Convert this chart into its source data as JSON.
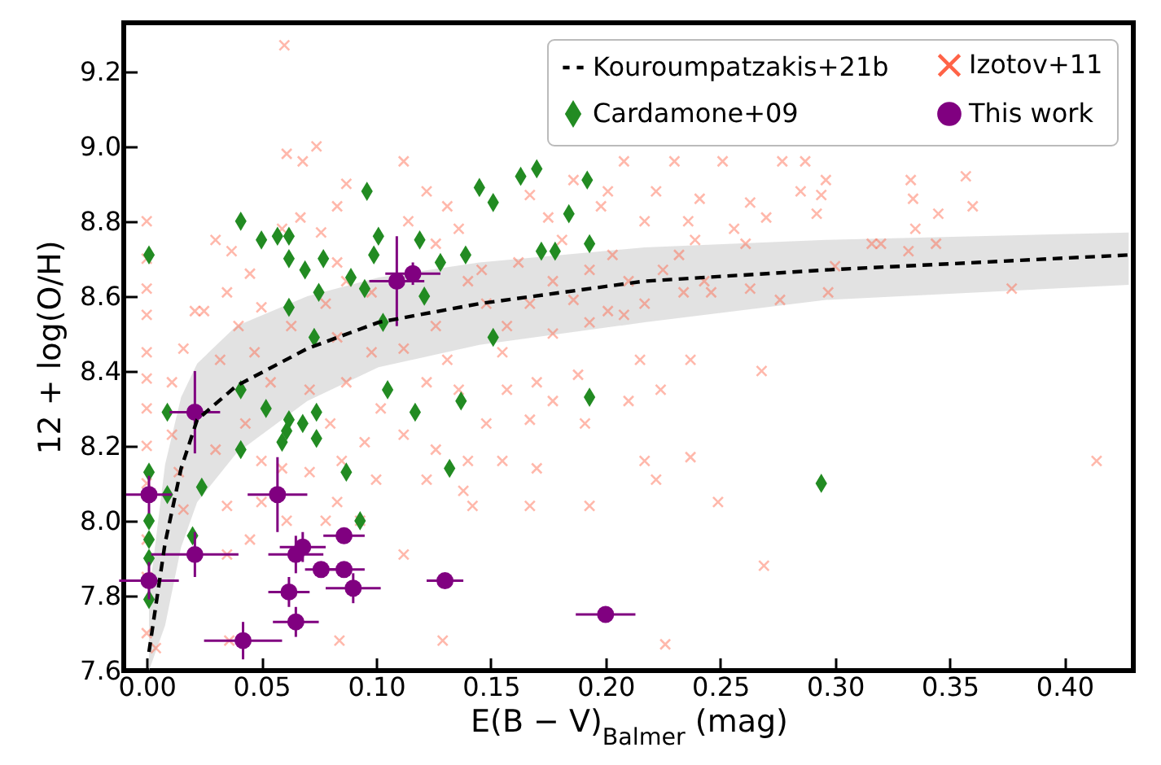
{
  "chart_data": {
    "type": "scatter",
    "xlabel": "E(B − V)$_{Balmer}$ (mag)",
    "ylabel": "12 + log(O/H)",
    "xlim": [
      -0.01,
      0.43
    ],
    "ylim": [
      7.6,
      9.33
    ],
    "xticks": [
      {
        "value": 0,
        "label": "0.00"
      },
      0.05,
      {
        "value": 0.1,
        "label": "0.10"
      },
      0.15,
      {
        "value": 0.2,
        "label": "0.20"
      },
      0.25,
      {
        "value": 0.3,
        "label": "0.30"
      },
      0.35,
      {
        "value": 0.4,
        "label": "0.40"
      }
    ],
    "yticks": [
      7.6,
      7.8,
      {
        "value": 8,
        "label": "8.0"
      },
      8.2,
      8.4,
      8.6,
      8.8,
      {
        "value": 9,
        "label": "9.0"
      },
      9.2
    ],
    "legend": "top right",
    "series": [
      {
        "name": "Kouroumpatzakis+21b",
        "type": "line",
        "line_style": "dashed",
        "color": "#000000",
        "x": [
          0.001,
          0.008,
          0.015,
          0.022,
          0.039,
          0.07,
          0.101,
          0.145,
          0.217,
          0.296,
          0.428
        ],
        "values": [
          7.65,
          7.94,
          8.14,
          8.27,
          8.36,
          8.46,
          8.53,
          8.58,
          8.64,
          8.67,
          8.71
        ],
        "lower": [
          7.6,
          7.72,
          7.93,
          8.05,
          8.18,
          8.32,
          8.41,
          8.47,
          8.53,
          8.59,
          8.63
        ],
        "upper": [
          7.8,
          8.15,
          8.33,
          8.42,
          8.52,
          8.6,
          8.65,
          8.69,
          8.73,
          8.75,
          8.77
        ]
      },
      {
        "name": "Izotov+11",
        "type": "scatter",
        "marker": "cross",
        "color": "#ff6347",
        "x": [
          0,
          0,
          0,
          0,
          0,
          0,
          0,
          0,
          0,
          0,
          0,
          0,
          0.021,
          0.025,
          0.011,
          0.016,
          0.011,
          0.014,
          0.016,
          0.03,
          0.037,
          0.035,
          0.045,
          0.05,
          0.04,
          0.032,
          0.047,
          0.054,
          0.043,
          0.03,
          0.05,
          0.035,
          0.05,
          0.061,
          0.045,
          0.035,
          0.078,
          0.059,
          0.067,
          0.076,
          0.083,
          0.087,
          0.083,
          0.087,
          0.098,
          0.078,
          0.063,
          0.083,
          0.098,
          0.087,
          0.071,
          0.102,
          0.08,
          0.095,
          0.085,
          0.1,
          0.083,
          0.093,
          0.071,
          0.059,
          0.112,
          0.122,
          0.131,
          0.114,
          0.126,
          0.136,
          0.14,
          0.126,
          0.112,
          0.131,
          0.122,
          0.136,
          0.112,
          0.126,
          0.122,
          0.138,
          0.112,
          0.129,
          0.084,
          0.004,
          0.036,
          0.226,
          0.06,
          0.061,
          0.068,
          0.074,
          0.208,
          0.23,
          0.251,
          0.277,
          0.287,
          0.186,
          0.201,
          0.222,
          0.241,
          0.263,
          0.285,
          0.167,
          0.175,
          0.198,
          0.217,
          0.236,
          0.256,
          0.27,
          0.181,
          0.203,
          0.232,
          0.239,
          0.261,
          0.146,
          0.162,
          0.177,
          0.193,
          0.21,
          0.225,
          0.243,
          0.148,
          0.167,
          0.186,
          0.201,
          0.217,
          0.234,
          0.246,
          0.263,
          0.276,
          0.157,
          0.177,
          0.193,
          0.208,
          0.155,
          0.17,
          0.188,
          0.215,
          0.237,
          0.268,
          0.157,
          0.177,
          0.21,
          0.224,
          0.148,
          0.167,
          0.191,
          0.14,
          0.155,
          0.17,
          0.217,
          0.237,
          0.142,
          0.167,
          0.193,
          0.222,
          0.249,
          0.269,
          0.296,
          0.294,
          0.292,
          0.333,
          0.334,
          0.357,
          0.36,
          0.345,
          0.335,
          0.316,
          0.32,
          0.332,
          0.344,
          0.3,
          0.297,
          0.377,
          0.414
        ],
        "values": [
          8.8,
          8.7,
          8.62,
          8.55,
          8.45,
          8.38,
          8.3,
          8.2,
          8.1,
          7.95,
          7.85,
          7.7,
          8.56,
          8.56,
          8.37,
          8.46,
          8.23,
          8.13,
          8.03,
          8.75,
          8.72,
          8.61,
          8.66,
          8.57,
          8.52,
          8.43,
          8.45,
          8.37,
          8.26,
          8.19,
          8.16,
          8.04,
          8.05,
          8.0,
          7.95,
          7.91,
          8.0,
          8.78,
          8.81,
          8.77,
          8.84,
          8.9,
          8.69,
          8.64,
          8.61,
          8.58,
          8.52,
          8.49,
          8.45,
          8.37,
          8.35,
          8.3,
          8.26,
          8.21,
          8.16,
          8.11,
          8.05,
          8.0,
          8.13,
          8.14,
          8.96,
          8.88,
          8.84,
          8.8,
          8.74,
          8.78,
          8.64,
          8.52,
          8.46,
          8.43,
          8.37,
          8.35,
          8.23,
          8.19,
          8.11,
          8.08,
          7.91,
          7.68,
          7.68,
          7.66,
          7.68,
          7.67,
          9.27,
          8.98,
          8.96,
          9.0,
          8.96,
          8.96,
          8.96,
          8.96,
          8.96,
          8.91,
          8.88,
          8.88,
          8.86,
          8.85,
          8.88,
          8.87,
          8.81,
          8.84,
          8.8,
          8.8,
          8.78,
          8.81,
          8.75,
          8.71,
          8.71,
          8.75,
          8.74,
          8.67,
          8.69,
          8.64,
          8.67,
          8.64,
          8.67,
          8.64,
          8.58,
          8.58,
          8.59,
          8.56,
          8.58,
          8.61,
          8.61,
          8.62,
          8.59,
          8.52,
          8.5,
          8.53,
          8.55,
          8.45,
          8.37,
          8.39,
          8.43,
          8.43,
          8.4,
          8.35,
          8.32,
          8.32,
          8.35,
          8.26,
          8.27,
          8.26,
          8.16,
          8.16,
          8.14,
          8.16,
          8.17,
          8.04,
          8.04,
          8.04,
          8.11,
          8.05,
          7.88,
          8.91,
          8.87,
          8.82,
          8.91,
          8.86,
          8.92,
          8.84,
          8.82,
          8.78,
          8.74,
          8.74,
          8.72,
          8.74,
          8.68,
          8.61,
          8.62,
          8.16
        ]
      },
      {
        "name": "Cardamone+09",
        "type": "scatter",
        "marker": "diamond",
        "color": "#228b22",
        "x": [
          0.001,
          0.001,
          0.001,
          0.001,
          0.001,
          0.001,
          0.009,
          0.009,
          0.02,
          0.024,
          0.041,
          0.041,
          0.041,
          0.05,
          0.052,
          0.057,
          0.062,
          0.062,
          0.062,
          0.059,
          0.061,
          0.062,
          0.068,
          0.069,
          0.073,
          0.075,
          0.074,
          0.074,
          0.077,
          0.087,
          0.089,
          0.093,
          0.095,
          0.096,
          0.099,
          0.101,
          0.103,
          0.105,
          0.117,
          0.119,
          0.121,
          0.128,
          0.132,
          0.137,
          0.139,
          0.145,
          0.151,
          0.151,
          0.163,
          0.17,
          0.172,
          0.178,
          0.184,
          0.192,
          0.193,
          0.193,
          0.294
        ],
        "values": [
          8.71,
          8.13,
          8.0,
          7.95,
          7.9,
          7.79,
          8.29,
          8.07,
          7.96,
          8.09,
          8.8,
          8.35,
          8.19,
          8.75,
          8.3,
          8.76,
          8.76,
          8.7,
          8.57,
          8.21,
          8.24,
          8.27,
          8.26,
          8.67,
          8.49,
          8.61,
          8.29,
          8.22,
          8.7,
          8.13,
          8.65,
          8.0,
          8.62,
          8.88,
          8.71,
          8.76,
          8.53,
          8.35,
          8.29,
          8.75,
          8.6,
          8.69,
          8.14,
          8.32,
          8.71,
          8.89,
          8.49,
          8.85,
          8.92,
          8.94,
          8.72,
          8.72,
          8.82,
          8.91,
          8.74,
          8.33,
          8.1
        ]
      },
      {
        "name": "This work",
        "type": "scatter",
        "marker": "circle",
        "color": "#800080",
        "x": [
          0.001,
          0.001,
          0.021,
          0.021,
          0.057,
          0.042,
          0.062,
          0.065,
          0.065,
          0.068,
          0.076,
          0.086,
          0.086,
          0.09,
          0.109,
          0.116,
          0.13,
          0.2
        ],
        "values": [
          8.07,
          7.84,
          8.29,
          7.91,
          8.07,
          7.68,
          7.81,
          7.73,
          7.91,
          7.93,
          7.87,
          7.96,
          7.87,
          7.82,
          8.64,
          8.66,
          7.84,
          7.75
        ],
        "xerrors": [
          0.01,
          0.013,
          0.011,
          0.019,
          0.013,
          0.017,
          0.009,
          0.01,
          0.012,
          0.01,
          0.007,
          0.009,
          0.009,
          0.012,
          0.012,
          0.012,
          0.008,
          0.013
        ],
        "errors": [
          0.05,
          0.05,
          0.11,
          0.06,
          0.1,
          0.05,
          0.04,
          0.04,
          0.05,
          0.04,
          0.02,
          0.02,
          0.02,
          0.04,
          0.12,
          0.03,
          0.02,
          0.02
        ]
      }
    ]
  }
}
